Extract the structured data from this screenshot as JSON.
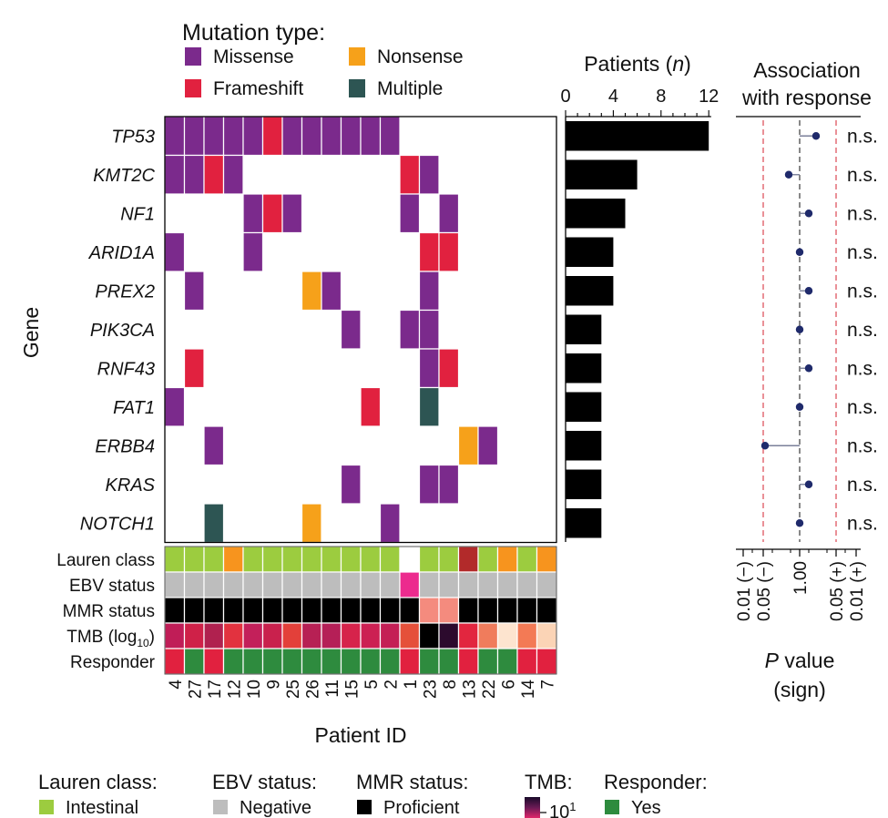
{
  "legend_mutation": {
    "title": "Mutation type:",
    "items": [
      {
        "label": "Missense",
        "key": "Missense"
      },
      {
        "label": "Nonsense",
        "key": "Nonsense"
      },
      {
        "label": "Frameshift",
        "key": "Frameshift"
      },
      {
        "label": "Multiple",
        "key": "Multiple"
      }
    ]
  },
  "colors": {
    "Missense": "#7b2a8c",
    "Nonsense": "#f6a11a",
    "Frameshift": "#e1213f",
    "Multiple": "#2d5553",
    "bar": "#000000",
    "point": "#1f2a6b",
    "dashed_red": "#e0626b",
    "lauren_intestinal": "#9ccc3f",
    "lauren_orange": "#f7941e",
    "lauren_darkred": "#b22a2a",
    "ebv_negative": "#bdbdbd",
    "ebv_pink": "#ec2b8e",
    "mmr_proficient": "#000000",
    "mmr_salmon": "#f48b7e",
    "resp_yes": "#2e8b3e",
    "resp_no": "#e1213f"
  },
  "labels": {
    "gene_axis": "Gene",
    "patient_axis": "Patient ID",
    "patients_title": "Patients (n)",
    "assoc_title_1": "Association",
    "assoc_title_2": "with response",
    "pvalue_1": "P value",
    "pvalue_2": "(sign)"
  },
  "chart_data": {
    "type": "heatmap",
    "genes": [
      "TP53",
      "KMT2C",
      "NF1",
      "ARID1A",
      "PREX2",
      "PIK3CA",
      "RNF43",
      "FAT1",
      "ERBB4",
      "KRAS",
      "NOTCH1"
    ],
    "patients": [
      "4",
      "27",
      "17",
      "12",
      "10",
      "9",
      "25",
      "26",
      "11",
      "15",
      "5",
      "2",
      "1",
      "23",
      "8",
      "13",
      "22",
      "6",
      "14",
      "7"
    ],
    "mutations": [
      [
        "M",
        "M",
        "M",
        "M",
        "M",
        "F",
        "M",
        "M",
        "M",
        "M",
        "M",
        "M",
        "",
        "",
        "",
        "",
        "",
        "",
        "",
        ""
      ],
      [
        "M",
        "M",
        "F",
        "M",
        "",
        "",
        "",
        "",
        "",
        "",
        "",
        "",
        "F",
        "M",
        "",
        "",
        "",
        "",
        "",
        ""
      ],
      [
        "",
        "",
        "",
        "",
        "M",
        "F",
        "M",
        "",
        "",
        "",
        "",
        "",
        "M",
        "",
        "M",
        "",
        "",
        "",
        "",
        ""
      ],
      [
        "M",
        "",
        "",
        "",
        "M",
        "",
        "",
        "",
        "",
        "",
        "",
        "",
        "",
        "F",
        "F",
        "",
        "",
        "",
        "",
        ""
      ],
      [
        "",
        "M",
        "",
        "",
        "",
        "",
        "",
        "N",
        "M",
        "",
        "",
        "",
        "",
        "M",
        "",
        "",
        "",
        "",
        "",
        ""
      ],
      [
        "",
        "",
        "",
        "",
        "",
        "",
        "",
        "",
        "",
        "M",
        "",
        "",
        "M",
        "M",
        "",
        "",
        "",
        "",
        "",
        ""
      ],
      [
        "",
        "F",
        "",
        "",
        "",
        "",
        "",
        "",
        "",
        "",
        "",
        "",
        "",
        "M",
        "F",
        "",
        "",
        "",
        "",
        ""
      ],
      [
        "M",
        "",
        "",
        "",
        "",
        "",
        "",
        "",
        "",
        "",
        "F",
        "",
        "",
        "X",
        "",
        "",
        "",
        "",
        "",
        ""
      ],
      [
        "",
        "",
        "M",
        "",
        "",
        "",
        "",
        "",
        "",
        "",
        "",
        "",
        "",
        "",
        "",
        "N",
        "M",
        "",
        "",
        ""
      ],
      [
        "",
        "",
        "",
        "",
        "",
        "",
        "",
        "",
        "",
        "M",
        "",
        "",
        "",
        "M",
        "M",
        "",
        "",
        "",
        "",
        ""
      ],
      [
        "",
        "",
        "X",
        "",
        "",
        "",
        "",
        "N",
        "",
        "",
        "",
        "M",
        "",
        "",
        "",
        "",
        "",
        "",
        "",
        ""
      ]
    ],
    "mutation_key": {
      "M": "Missense",
      "N": "Nonsense",
      "F": "Frameshift",
      "X": "Multiple"
    },
    "patients_count": {
      "axis_ticks": [
        0,
        4,
        8,
        12
      ],
      "values": [
        12,
        6,
        5,
        4,
        4,
        3,
        3,
        3,
        3,
        3,
        3
      ]
    },
    "association": {
      "statuses": [
        "n.s.",
        "n.s.",
        "n.s.",
        "n.s.",
        "n.s.",
        "n.s.",
        "n.s.",
        "n.s.",
        "n.s.",
        "n.s.",
        "n.s."
      ],
      "signed_value": [
        0.45,
        -0.3,
        0.25,
        0.0,
        0.25,
        0.0,
        0.25,
        0.0,
        -0.95,
        0.25,
        0.0
      ],
      "axis_ticks": [
        "0.01 (−)",
        "0.05 (−)",
        "1.00",
        "0.05 (+)",
        "0.01 (+)"
      ]
    },
    "tracks": {
      "labels": [
        "Lauren class",
        "EBV status",
        "MMR status",
        "TMB (log10)",
        "Responder"
      ],
      "lauren": [
        "I",
        "I",
        "I",
        "O",
        "I",
        "I",
        "I",
        "I",
        "I",
        "I",
        "I",
        "I",
        "W",
        "I",
        "I",
        "R",
        "I",
        "O",
        "I",
        "O"
      ],
      "ebv": [
        "N",
        "N",
        "N",
        "N",
        "N",
        "N",
        "N",
        "N",
        "N",
        "N",
        "N",
        "N",
        "P",
        "N",
        "N",
        "N",
        "N",
        "N",
        "N",
        "N"
      ],
      "mmr": [
        "P",
        "P",
        "P",
        "P",
        "P",
        "P",
        "P",
        "P",
        "P",
        "P",
        "P",
        "P",
        "P",
        "S",
        "S",
        "P",
        "P",
        "P",
        "P",
        "P"
      ],
      "tmb": [
        "#c01d57",
        "#cf2148",
        "#b0214f",
        "#e2323f",
        "#c3205a",
        "#c9214d",
        "#e3403a",
        "#b72054",
        "#b51f57",
        "#d6234b",
        "#cc2053",
        "#c41f55",
        "#e5503a",
        "#000000",
        "#2c0a2d",
        "#e2263f",
        "#f07c5c",
        "#fde4cf",
        "#f37a55",
        "#fbd4b6"
      ],
      "responder": [
        "N",
        "Y",
        "N",
        "Y",
        "Y",
        "Y",
        "Y",
        "Y",
        "Y",
        "Y",
        "Y",
        "Y",
        "N",
        "Y",
        "Y",
        "N",
        "Y",
        "Y",
        "N",
        "N"
      ]
    }
  },
  "bottom_legend": [
    {
      "title": "Lauren class:",
      "item": "Intestinal",
      "swatch": "#9ccc3f"
    },
    {
      "title": "EBV status:",
      "item": "Negative",
      "swatch": "#bdbdbd"
    },
    {
      "title": "MMR status:",
      "item": "Proficient",
      "swatch": "#000000"
    },
    {
      "title": "TMB:",
      "item": "10",
      "sup": "1"
    },
    {
      "title": "Responder:",
      "item": "Yes",
      "swatch": "#2e8b3e"
    }
  ]
}
